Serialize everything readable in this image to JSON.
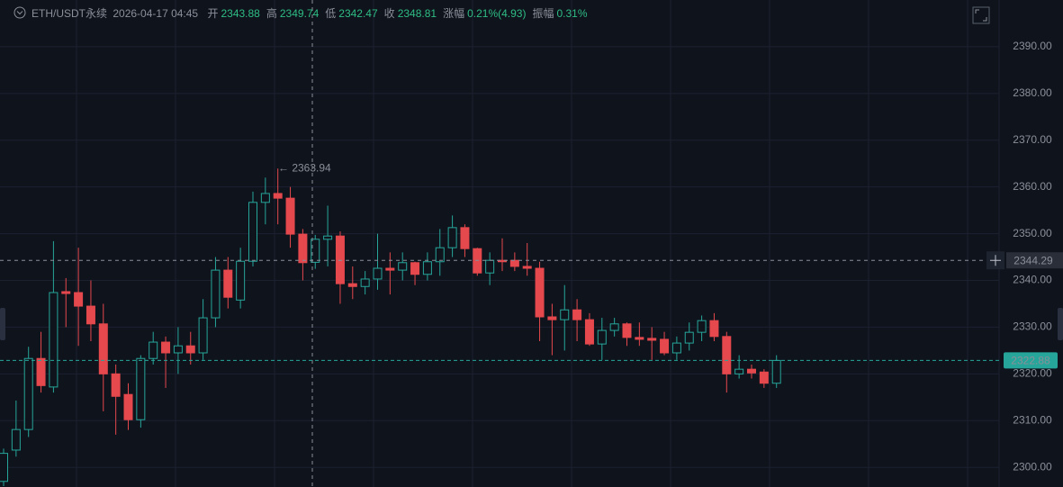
{
  "header": {
    "symbol": "ETH/USDT永续",
    "time": "2026-04-17 04:45",
    "stats": [
      {
        "label": "开",
        "value": "2343.88"
      },
      {
        "label": "高",
        "value": "2349.74"
      },
      {
        "label": "低",
        "value": "2342.47"
      },
      {
        "label": "收",
        "value": "2348.81"
      },
      {
        "label": "涨幅",
        "value": "0.21%(4.93)"
      },
      {
        "label": "振幅",
        "value": "0.31%"
      }
    ]
  },
  "chart_data": {
    "type": "candlestick",
    "up_color": "#26a69a",
    "down_color": "#e5484d",
    "grid": true,
    "ylim": [
      2295.8,
      2400
    ],
    "yticks": [
      {
        "value": 2300,
        "label": "2300.00"
      },
      {
        "value": 2310,
        "label": "2310.00"
      },
      {
        "value": 2320,
        "label": "2320.00"
      },
      {
        "value": 2330,
        "label": "2330.00"
      },
      {
        "value": 2340,
        "label": "2340.00"
      },
      {
        "value": 2350,
        "label": "2350.00"
      },
      {
        "value": 2360,
        "label": "2360.00"
      },
      {
        "value": 2370,
        "label": "2370.00"
      },
      {
        "value": 2380,
        "label": "2380.00"
      },
      {
        "value": 2390,
        "label": "2390.00"
      }
    ],
    "open": [
      2297,
      2303.7,
      2308.1,
      2323.3,
      2317.2,
      2337.6,
      2337.4,
      2334.5,
      2330.7,
      2320,
      2315.6,
      2310.2,
      2323.3,
      2326.8,
      2324.5,
      2326,
      2324.5,
      2332,
      2342.2,
      2335.8,
      2344.1,
      2356.7,
      2358.6,
      2357.6,
      2349.9,
      2343.88,
      2348.8,
      2349.5,
      2339.3,
      2338.7,
      2340.3,
      2342.6,
      2342.2,
      2343.8,
      2341.3,
      2344,
      2347,
      2351.3,
      2346.8,
      2341.6,
      2344.3,
      2344.3,
      2343,
      2342.6,
      2332.2,
      2331.6,
      2333.7,
      2331.6,
      2326.4,
      2329.3,
      2330.7,
      2327.8,
      2327.6,
      2327.4,
      2324.5,
      2326.6,
      2328.9,
      2331.4,
      2328,
      2320,
      2321,
      2320.4,
      2318
    ],
    "high": [
      2304,
      2314.3,
      2325.8,
      2329,
      2348.4,
      2340.5,
      2347,
      2340,
      2335,
      2322,
      2318,
      2324,
      2329,
      2328,
      2330,
      2329,
      2336,
      2345,
      2345,
      2347,
      2359,
      2362,
      2363.94,
      2360,
      2351,
      2349.74,
      2356,
      2350.5,
      2343,
      2342,
      2350,
      2346,
      2346,
      2344,
      2346,
      2351,
      2353.9,
      2352,
      2347,
      2346,
      2349,
      2346,
      2348,
      2344,
      2335,
      2339,
      2336,
      2333,
      2332,
      2332,
      2331,
      2331,
      2330,
      2329,
      2328,
      2331,
      2332.5,
      2333,
      2329,
      2324,
      2322,
      2321,
      2324
    ],
    "low": [
      2296,
      2302.3,
      2306.5,
      2316,
      2316,
      2330,
      2326,
      2327,
      2312,
      2307,
      2308,
      2308.5,
      2322,
      2317,
      2320,
      2322,
      2323,
      2330,
      2334,
      2334,
      2343,
      2352,
      2352,
      2347,
      2340,
      2342.47,
      2343,
      2335,
      2336,
      2337,
      2338,
      2337,
      2340,
      2339,
      2340,
      2341,
      2345,
      2345,
      2341,
      2339,
      2342,
      2342,
      2341,
      2327,
      2324,
      2325,
      2327,
      2326,
      2323,
      2328,
      2326,
      2326,
      2323,
      2324,
      2323,
      2325,
      2327,
      2327,
      2316,
      2319,
      2319,
      2317,
      2317
    ],
    "close": [
      2303,
      2308.1,
      2323.3,
      2317.5,
      2337.4,
      2337.2,
      2334.5,
      2330.7,
      2320,
      2315.2,
      2310.2,
      2323.3,
      2326.8,
      2324.5,
      2326,
      2324.5,
      2332,
      2342.2,
      2336.4,
      2344.1,
      2356.7,
      2358.6,
      2357.6,
      2349.9,
      2343.8,
      2348.81,
      2349.5,
      2339.3,
      2338.7,
      2340.3,
      2342.6,
      2342.2,
      2343.8,
      2341.3,
      2344,
      2347,
      2351.3,
      2346.8,
      2341.6,
      2344.3,
      2344,
      2343,
      2342.6,
      2332.2,
      2331.6,
      2333.7,
      2331.6,
      2326.4,
      2329.3,
      2330.7,
      2327.8,
      2327.4,
      2327.2,
      2324.5,
      2326.6,
      2328.9,
      2331.4,
      2328,
      2320,
      2321,
      2320.2,
      2318,
      2322.88
    ],
    "high_marker": {
      "value": 2363.94,
      "label": "← 2363.94"
    },
    "crosshair_price": {
      "value": 2344.29,
      "label": "2344.29"
    },
    "last_price": {
      "value": 2322.88,
      "label": "2322.88"
    }
  }
}
